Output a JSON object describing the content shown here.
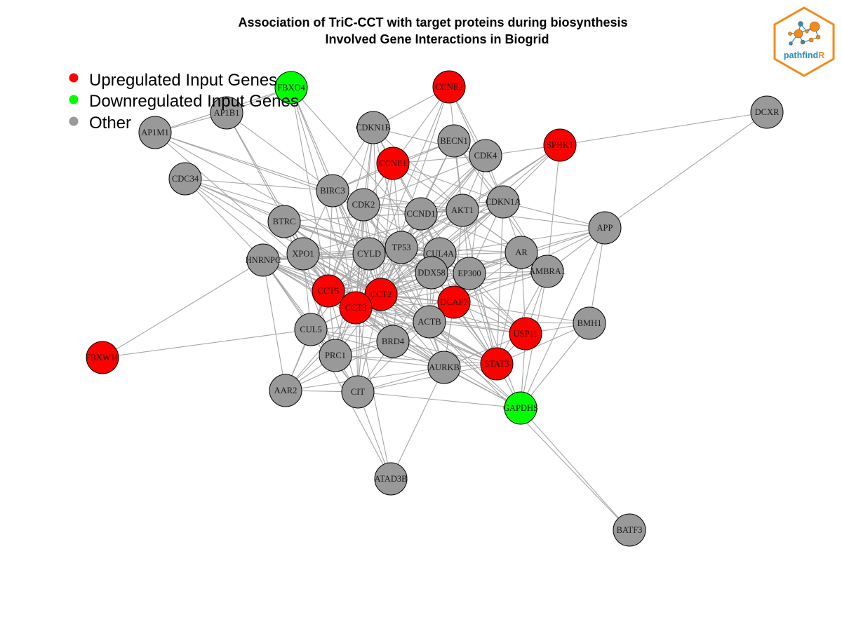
{
  "title": {
    "line1": "Association of TriC-CCT with target proteins during biosynthesis",
    "line2": "Involved Gene Interactions in Biogrid"
  },
  "colors": {
    "up": "#ff0000",
    "down": "#00ff00",
    "other": "#999999",
    "edge": "#a6a6a6",
    "logo_orange": "#f08c1e",
    "logo_blue": "#2a8bbf"
  },
  "legend": [
    {
      "label": "Upregulated Input Genes",
      "color": "#ff0000"
    },
    {
      "label": "Downregulated Input Genes",
      "color": "#00ff00"
    },
    {
      "label": "Other",
      "color": "#999999"
    }
  ],
  "logo": {
    "text_main": "pathfind",
    "text_accent": "R"
  },
  "nodes": [
    {
      "id": "FBXO4",
      "type": "down"
    },
    {
      "id": "CCNE2",
      "type": "up"
    },
    {
      "id": "AP1B1",
      "type": "other"
    },
    {
      "id": "AP1M1",
      "type": "other"
    },
    {
      "id": "CDKN1B",
      "type": "other"
    },
    {
      "id": "BECN1",
      "type": "other"
    },
    {
      "id": "SPHK1",
      "type": "up"
    },
    {
      "id": "DCXR",
      "type": "other"
    },
    {
      "id": "CCNE1",
      "type": "up"
    },
    {
      "id": "CDK4",
      "type": "other"
    },
    {
      "id": "CDC34",
      "type": "other"
    },
    {
      "id": "BIRC3",
      "type": "other"
    },
    {
      "id": "CDK2",
      "type": "other"
    },
    {
      "id": "CDKN1A",
      "type": "other"
    },
    {
      "id": "CCND1",
      "type": "other"
    },
    {
      "id": "AKT1",
      "type": "other"
    },
    {
      "id": "BTRC",
      "type": "other"
    },
    {
      "id": "APP",
      "type": "other"
    },
    {
      "id": "TP53",
      "type": "other"
    },
    {
      "id": "CUL4A",
      "type": "other"
    },
    {
      "id": "AR",
      "type": "other"
    },
    {
      "id": "XPO1",
      "type": "other"
    },
    {
      "id": "CYLD",
      "type": "other"
    },
    {
      "id": "HNRNPC",
      "type": "other"
    },
    {
      "id": "AMBRA1",
      "type": "other"
    },
    {
      "id": "DDX58",
      "type": "other"
    },
    {
      "id": "EP300",
      "type": "other"
    },
    {
      "id": "CCT5",
      "type": "up"
    },
    {
      "id": "CCT2",
      "type": "up"
    },
    {
      "id": "DCAF7",
      "type": "up"
    },
    {
      "id": "CCT3",
      "type": "up"
    },
    {
      "id": "ACTB",
      "type": "other"
    },
    {
      "id": "BMH1",
      "type": "other"
    },
    {
      "id": "CUL5",
      "type": "other"
    },
    {
      "id": "USP11",
      "type": "up"
    },
    {
      "id": "BRD4",
      "type": "other"
    },
    {
      "id": "FBXW10",
      "type": "up"
    },
    {
      "id": "PRC1",
      "type": "other"
    },
    {
      "id": "STAT3",
      "type": "up"
    },
    {
      "id": "AURKB",
      "type": "other"
    },
    {
      "id": "AAR2",
      "type": "other"
    },
    {
      "id": "CIT",
      "type": "other"
    },
    {
      "id": "GAPDHS",
      "type": "down"
    },
    {
      "id": "ATAD3B",
      "type": "other"
    },
    {
      "id": "BATF3",
      "type": "other"
    }
  ],
  "edges": [
    [
      "FBXO4",
      "AP1B1"
    ],
    [
      "FBXO4",
      "AP1M1"
    ],
    [
      "FBXO4",
      "CCT5"
    ],
    [
      "FBXO4",
      "CCT3"
    ],
    [
      "FBXO4",
      "CUL4A"
    ],
    [
      "FBXO4",
      "CCT2"
    ],
    [
      "FBXO4",
      "BIRC3"
    ],
    [
      "CCNE2",
      "CDK2"
    ],
    [
      "CCNE2",
      "CDKN1B"
    ],
    [
      "CCNE2",
      "CCT3"
    ],
    [
      "CCNE2",
      "CDKN1A"
    ],
    [
      "CCNE2",
      "CDK4"
    ],
    [
      "CCNE2",
      "AKT1"
    ],
    [
      "CCNE2",
      "CCT2"
    ],
    [
      "AP1B1",
      "AP1M1"
    ],
    [
      "AP1B1",
      "BIRC3"
    ],
    [
      "AP1B1",
      "XPO1"
    ],
    [
      "AP1B1",
      "CCT5"
    ],
    [
      "AP1M1",
      "CDK2"
    ],
    [
      "AP1M1",
      "BIRC3"
    ],
    [
      "AP1M1",
      "CYLD"
    ],
    [
      "AP1M1",
      "CCT3"
    ],
    [
      "CDKN1B",
      "CCNE1"
    ],
    [
      "CDKN1B",
      "CDK2"
    ],
    [
      "CDKN1B",
      "CDK4"
    ],
    [
      "CDKN1B",
      "AKT1"
    ],
    [
      "CDKN1B",
      "BIRC3"
    ],
    [
      "CDKN1B",
      "CCND1"
    ],
    [
      "CDKN1B",
      "CCT5"
    ],
    [
      "CDKN1B",
      "CCT2"
    ],
    [
      "CDKN1B",
      "TP53"
    ],
    [
      "CDKN1B",
      "CUL4A"
    ],
    [
      "CDKN1B",
      "CCT3"
    ],
    [
      "BECN1",
      "CDK4"
    ],
    [
      "BECN1",
      "AKT1"
    ],
    [
      "BECN1",
      "CDKN1A"
    ],
    [
      "BECN1",
      "CCNE1"
    ],
    [
      "BECN1",
      "TP53"
    ],
    [
      "BECN1",
      "AMBRA1"
    ],
    [
      "BECN1",
      "CCT2"
    ],
    [
      "BECN1",
      "BIRC3"
    ],
    [
      "SPHK1",
      "DCXR"
    ],
    [
      "SPHK1",
      "CDK4"
    ],
    [
      "SPHK1",
      "AKT1"
    ],
    [
      "SPHK1",
      "TP53"
    ],
    [
      "SPHK1",
      "CCT2"
    ],
    [
      "SPHK1",
      "AMBRA1"
    ],
    [
      "SPHK1",
      "CDKN1A"
    ],
    [
      "DCXR",
      "APP"
    ],
    [
      "CCNE1",
      "CDK2"
    ],
    [
      "CCNE1",
      "CDK4"
    ],
    [
      "CCNE1",
      "CCND1"
    ],
    [
      "CCNE1",
      "CDKN1A"
    ],
    [
      "CCNE1",
      "AKT1"
    ],
    [
      "CCNE1",
      "BIRC3"
    ],
    [
      "CCNE1",
      "TP53"
    ],
    [
      "CCNE1",
      "CCT3"
    ],
    [
      "CCNE1",
      "CCT2"
    ],
    [
      "CDK4",
      "CCND1"
    ],
    [
      "CDK4",
      "CDKN1A"
    ],
    [
      "CDK4",
      "AKT1"
    ],
    [
      "CDK4",
      "TP53"
    ],
    [
      "CDK4",
      "CDK2"
    ],
    [
      "CDK4",
      "CCT2"
    ],
    [
      "CDK4",
      "CCT3"
    ],
    [
      "CDK4",
      "EP300"
    ],
    [
      "CDC34",
      "BTRC"
    ],
    [
      "CDC34",
      "BIRC3"
    ],
    [
      "CDC34",
      "CCT5"
    ],
    [
      "CDC34",
      "CUL4A"
    ],
    [
      "CDC34",
      "CCT2"
    ],
    [
      "CDC34",
      "HNRNPC"
    ],
    [
      "CDC34",
      "CYLD"
    ],
    [
      "BIRC3",
      "CDK2"
    ],
    [
      "BIRC3",
      "TP53"
    ],
    [
      "BIRC3",
      "XPO1"
    ],
    [
      "BIRC3",
      "CCT3"
    ],
    [
      "BIRC3",
      "CCT5"
    ],
    [
      "BIRC3",
      "AKT1"
    ],
    [
      "BIRC3",
      "CYLD"
    ],
    [
      "BIRC3",
      "BRD4"
    ],
    [
      "BIRC3",
      "CCT2"
    ],
    [
      "BIRC3",
      "DDX58"
    ],
    [
      "CDK2",
      "CDKN1A"
    ],
    [
      "CDK2",
      "CCND1"
    ],
    [
      "CDK2",
      "AKT1"
    ],
    [
      "CDK2",
      "TP53"
    ],
    [
      "CDK2",
      "CCT3"
    ],
    [
      "CDK2",
      "CCT5"
    ],
    [
      "CDK2",
      "CCT2"
    ],
    [
      "CDK2",
      "CUL5"
    ],
    [
      "CDK2",
      "AURKB"
    ],
    [
      "CDK2",
      "PRC1"
    ],
    [
      "CDK2",
      "CIT"
    ],
    [
      "CDK2",
      "EP300"
    ],
    [
      "CDK2",
      "ACTB"
    ],
    [
      "CDK2",
      "CYLD"
    ],
    [
      "CDKN1A",
      "AKT1"
    ],
    [
      "CDKN1A",
      "CCND1"
    ],
    [
      "CDKN1A",
      "TP53"
    ],
    [
      "CDKN1A",
      "CCT2"
    ],
    [
      "CDKN1A",
      "CCT3"
    ],
    [
      "CDKN1A",
      "STAT3"
    ],
    [
      "CDKN1A",
      "APP"
    ],
    [
      "CDKN1A",
      "AR"
    ],
    [
      "CDKN1A",
      "EP300"
    ],
    [
      "CDKN1A",
      "AMBRA1"
    ],
    [
      "CDKN1A",
      "CUL4A"
    ],
    [
      "CDKN1A",
      "DDX58"
    ],
    [
      "CCND1",
      "AKT1"
    ],
    [
      "CCND1",
      "TP53"
    ],
    [
      "CCND1",
      "CCT3"
    ],
    [
      "CCND1",
      "CCT2"
    ],
    [
      "CCND1",
      "AR"
    ],
    [
      "CCND1",
      "EP300"
    ],
    [
      "CCND1",
      "STAT3"
    ],
    [
      "CCND1",
      "ACTB"
    ],
    [
      "CCND1",
      "CCT5"
    ],
    [
      "CCND1",
      "CUL4A"
    ],
    [
      "AKT1",
      "TP53"
    ],
    [
      "AKT1",
      "CCT2"
    ],
    [
      "AKT1",
      "CCT3"
    ],
    [
      "AKT1",
      "AR"
    ],
    [
      "AKT1",
      "EP300"
    ],
    [
      "AKT1",
      "STAT3"
    ],
    [
      "AKT1",
      "DCAF7"
    ],
    [
      "AKT1",
      "APP"
    ],
    [
      "AKT1",
      "XPO1"
    ],
    [
      "AKT1",
      "CYLD"
    ],
    [
      "AKT1",
      "BTRC"
    ],
    [
      "AKT1",
      "AMBRA1"
    ],
    [
      "BTRC",
      "CCT5"
    ],
    [
      "BTRC",
      "CCT3"
    ],
    [
      "BTRC",
      "CUL4A"
    ],
    [
      "BTRC",
      "CCT2"
    ],
    [
      "BTRC",
      "TP53"
    ],
    [
      "BTRC",
      "ACTB"
    ],
    [
      "BTRC",
      "CYLD"
    ],
    [
      "BTRC",
      "XPO1"
    ],
    [
      "BTRC",
      "DDX58"
    ],
    [
      "BTRC",
      "PRC1"
    ],
    [
      "APP",
      "AMBRA1"
    ],
    [
      "APP",
      "AR"
    ],
    [
      "APP",
      "BMH1"
    ],
    [
      "APP",
      "GAPDHS"
    ],
    [
      "APP",
      "DCAF7"
    ],
    [
      "APP",
      "EP300"
    ],
    [
      "APP",
      "CUL4A"
    ],
    [
      "TP53",
      "CUL4A"
    ],
    [
      "TP53",
      "CCT3"
    ],
    [
      "TP53",
      "CCT5"
    ],
    [
      "TP53",
      "CCT2"
    ],
    [
      "TP53",
      "XPO1"
    ],
    [
      "TP53",
      "CYLD"
    ],
    [
      "TP53",
      "AR"
    ],
    [
      "TP53",
      "EP300"
    ],
    [
      "TP53",
      "USP11"
    ],
    [
      "TP53",
      "STAT3"
    ],
    [
      "TP53",
      "BRD4"
    ],
    [
      "TP53",
      "DDX58"
    ],
    [
      "TP53",
      "HNRNPC"
    ],
    [
      "TP53",
      "AURKB"
    ],
    [
      "TP53",
      "AMBRA1"
    ],
    [
      "CUL4A",
      "DDX58"
    ],
    [
      "CUL4A",
      "EP300"
    ],
    [
      "CUL4A",
      "CCT2"
    ],
    [
      "CUL4A",
      "CCT3"
    ],
    [
      "CUL4A",
      "CCT5"
    ],
    [
      "CUL4A",
      "DCAF7"
    ],
    [
      "CUL4A",
      "AMBRA1"
    ],
    [
      "CUL4A",
      "XPO1"
    ],
    [
      "CUL4A",
      "HNRNPC"
    ],
    [
      "CUL4A",
      "ACTB"
    ],
    [
      "CUL4A",
      "USP11"
    ],
    [
      "AR",
      "EP300"
    ],
    [
      "AR",
      "AMBRA1"
    ],
    [
      "AR",
      "CCT2"
    ],
    [
      "AR",
      "CCT3"
    ],
    [
      "AR",
      "STAT3"
    ],
    [
      "AR",
      "DCAF7"
    ],
    [
      "AR",
      "USP11"
    ],
    [
      "AR",
      "HNRNPC"
    ],
    [
      "XPO1",
      "CYLD"
    ],
    [
      "XPO1",
      "CCT5"
    ],
    [
      "XPO1",
      "CCT3"
    ],
    [
      "XPO1",
      "CCT2"
    ],
    [
      "XPO1",
      "HNRNPC"
    ],
    [
      "XPO1",
      "CUL5"
    ],
    [
      "XPO1",
      "PRC1"
    ],
    [
      "XPO1",
      "EP300"
    ],
    [
      "XPO1",
      "STAT3"
    ],
    [
      "XPO1",
      "AURKB"
    ],
    [
      "XPO1",
      "BRD4"
    ],
    [
      "XPO1",
      "ACTB"
    ],
    [
      "CYLD",
      "CCT3"
    ],
    [
      "CYLD",
      "CCT5"
    ],
    [
      "CYLD",
      "CCT2"
    ],
    [
      "CYLD",
      "DDX58"
    ],
    [
      "CYLD",
      "HNRNPC"
    ],
    [
      "CYLD",
      "CUL5"
    ],
    [
      "CYLD",
      "EP300"
    ],
    [
      "CYLD",
      "ACTB"
    ],
    [
      "CYLD",
      "PRC1"
    ],
    [
      "CYLD",
      "CIT"
    ],
    [
      "HNRNPC",
      "FBXW10"
    ],
    [
      "HNRNPC",
      "CCT5"
    ],
    [
      "HNRNPC",
      "CCT3"
    ],
    [
      "HNRNPC",
      "CUL5"
    ],
    [
      "HNRNPC",
      "PRC1"
    ],
    [
      "HNRNPC",
      "AAR2"
    ],
    [
      "HNRNPC",
      "CIT"
    ],
    [
      "HNRNPC",
      "CCT2"
    ],
    [
      "HNRNPC",
      "ACTB"
    ],
    [
      "HNRNPC",
      "BRD4"
    ],
    [
      "HNRNPC",
      "AURKB"
    ],
    [
      "HNRNPC",
      "STAT3"
    ],
    [
      "AMBRA1",
      "DCAF7"
    ],
    [
      "AMBRA1",
      "USP11"
    ],
    [
      "AMBRA1",
      "EP300"
    ],
    [
      "AMBRA1",
      "CCT3"
    ],
    [
      "AMBRA1",
      "CCT2"
    ],
    [
      "AMBRA1",
      "STAT3"
    ],
    [
      "AMBRA1",
      "GAPDHS"
    ],
    [
      "DDX58",
      "EP300"
    ],
    [
      "DDX58",
      "CCT2"
    ],
    [
      "DDX58",
      "CCT3"
    ],
    [
      "DDX58",
      "CCT5"
    ],
    [
      "DDX58",
      "ACTB"
    ],
    [
      "DDX58",
      "DCAF7"
    ],
    [
      "DDX58",
      "BRD4"
    ],
    [
      "DDX58",
      "STAT3"
    ],
    [
      "EP300",
      "CCT2"
    ],
    [
      "EP300",
      "CCT3"
    ],
    [
      "EP300",
      "CCT5"
    ],
    [
      "EP300",
      "DCAF7"
    ],
    [
      "EP300",
      "STAT3"
    ],
    [
      "EP300",
      "USP11"
    ],
    [
      "EP300",
      "ACTB"
    ],
    [
      "EP300",
      "BRD4"
    ],
    [
      "EP300",
      "GAPDHS"
    ],
    [
      "CCT5",
      "CCT2"
    ],
    [
      "CCT5",
      "CCT3"
    ],
    [
      "CCT5",
      "CUL5"
    ],
    [
      "CCT5",
      "PRC1"
    ],
    [
      "CCT5",
      "BRD4"
    ],
    [
      "CCT5",
      "ACTB"
    ],
    [
      "CCT5",
      "AAR2"
    ],
    [
      "CCT5",
      "CIT"
    ],
    [
      "CCT5",
      "AURKB"
    ],
    [
      "CCT5",
      "DCAF7"
    ],
    [
      "CCT5",
      "STAT3"
    ],
    [
      "CCT2",
      "CCT3"
    ],
    [
      "CCT2",
      "ACTB"
    ],
    [
      "CCT2",
      "BRD4"
    ],
    [
      "CCT2",
      "DCAF7"
    ],
    [
      "CCT2",
      "CUL5"
    ],
    [
      "CCT2",
      "PRC1"
    ],
    [
      "CCT2",
      "AURKB"
    ],
    [
      "CCT2",
      "STAT3"
    ],
    [
      "CCT2",
      "USP11"
    ],
    [
      "CCT2",
      "GAPDHS"
    ],
    [
      "CCT2",
      "CIT"
    ],
    [
      "CCT2",
      "AAR2"
    ],
    [
      "CCT3",
      "ACTB"
    ],
    [
      "CCT3",
      "BRD4"
    ],
    [
      "CCT3",
      "PRC1"
    ],
    [
      "CCT3",
      "CUL5"
    ],
    [
      "CCT3",
      "CIT"
    ],
    [
      "CCT3",
      "AAR2"
    ],
    [
      "CCT3",
      "AURKB"
    ],
    [
      "CCT3",
      "DCAF7"
    ],
    [
      "CCT3",
      "STAT3"
    ],
    [
      "CCT3",
      "USP11"
    ],
    [
      "CCT3",
      "GAPDHS"
    ],
    [
      "CCT3",
      "ATAD3B"
    ],
    [
      "DCAF7",
      "ACTB"
    ],
    [
      "DCAF7",
      "STAT3"
    ],
    [
      "DCAF7",
      "USP11"
    ],
    [
      "DCAF7",
      "BMH1"
    ],
    [
      "DCAF7",
      "BRD4"
    ],
    [
      "DCAF7",
      "AURKB"
    ],
    [
      "ACTB",
      "BRD4"
    ],
    [
      "ACTB",
      "STAT3"
    ],
    [
      "ACTB",
      "AURKB"
    ],
    [
      "ACTB",
      "GAPDHS"
    ],
    [
      "ACTB",
      "CUL5"
    ],
    [
      "ACTB",
      "PRC1"
    ],
    [
      "ACTB",
      "CIT"
    ],
    [
      "ACTB",
      "USP11"
    ],
    [
      "ACTB",
      "BMH1"
    ],
    [
      "BMH1",
      "USP11"
    ],
    [
      "BMH1",
      "STAT3"
    ],
    [
      "BMH1",
      "GAPDHS"
    ],
    [
      "CUL5",
      "PRC1"
    ],
    [
      "CUL5",
      "AAR2"
    ],
    [
      "CUL5",
      "CIT"
    ],
    [
      "CUL5",
      "FBXW10"
    ],
    [
      "CUL5",
      "BRD4"
    ],
    [
      "CUL5",
      "AURKB"
    ],
    [
      "CUL5",
      "ATAD3B"
    ],
    [
      "USP11",
      "STAT3"
    ],
    [
      "USP11",
      "GAPDHS"
    ],
    [
      "USP11",
      "AURKB"
    ],
    [
      "BRD4",
      "PRC1"
    ],
    [
      "BRD4",
      "AURKB"
    ],
    [
      "BRD4",
      "STAT3"
    ],
    [
      "BRD4",
      "CIT"
    ],
    [
      "BRD4",
      "AAR2"
    ],
    [
      "BRD4",
      "GAPDHS"
    ],
    [
      "PRC1",
      "AURKB"
    ],
    [
      "PRC1",
      "CIT"
    ],
    [
      "PRC1",
      "AAR2"
    ],
    [
      "PRC1",
      "STAT3"
    ],
    [
      "STAT3",
      "AURKB"
    ],
    [
      "STAT3",
      "GAPDHS"
    ],
    [
      "STAT3",
      "CIT"
    ],
    [
      "AURKB",
      "CIT"
    ],
    [
      "AURKB",
      "AAR2"
    ],
    [
      "AURKB",
      "GAPDHS"
    ],
    [
      "AURKB",
      "ATAD3B"
    ],
    [
      "AAR2",
      "CIT"
    ],
    [
      "CIT",
      "ATAD3B"
    ],
    [
      "CIT",
      "GAPDHS"
    ],
    [
      "GAPDHS",
      "BATF3"
    ],
    [
      "ACTB",
      "BATF3"
    ]
  ]
}
